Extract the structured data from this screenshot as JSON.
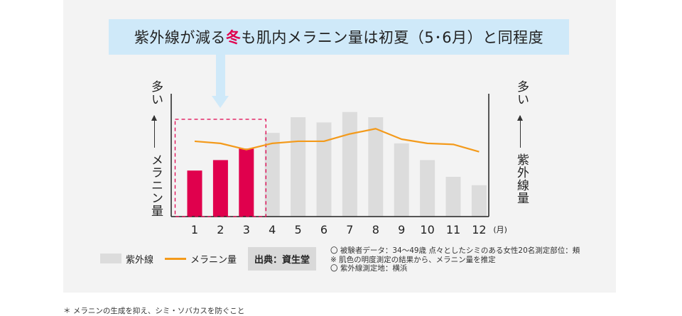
{
  "banner": {
    "text_before": "紫外線が減る",
    "highlight": "冬",
    "text_after": "も肌内メラニン量は初夏（5･6月）と同程度"
  },
  "left_axis": {
    "top": "多い",
    "label": "メラニン量"
  },
  "right_axis": {
    "top": "多い",
    "label": "紫外線量"
  },
  "legend": {
    "bar_label": "紫外線",
    "line_label": "メラニン量",
    "source": "出典：資生堂"
  },
  "notes": [
    "〇 被験者データ：34〜49歳 点々としたシミのある女性20名測定部位：頬",
    "※ 肌色の明度測定の結果から、メラニン量を推定",
    "〇 紫外線測定地：横浜"
  ],
  "footnote": "＊ メラニンの生成を抑え、シミ・ソバカスを防ぐこと",
  "colors": {
    "highlight_bar": "#e0004d",
    "bar": "#dcdcdc",
    "line": "#f39a1b",
    "banner_bg": "#cfe9f9",
    "highlight_box": "#e0004d"
  },
  "chart_data": {
    "type": "bar",
    "categories": [
      "1",
      "2",
      "3",
      "4",
      "5",
      "6",
      "7",
      "8",
      "9",
      "10",
      "11",
      "12"
    ],
    "unit_label": "(月)",
    "series": [
      {
        "name": "紫外線",
        "type": "bar",
        "axis": "right",
        "values": [
          44,
          54,
          65,
          80,
          95,
          90,
          100,
          95,
          70,
          54,
          38,
          30
        ]
      },
      {
        "name": "メラニン量",
        "type": "line",
        "axis": "left",
        "values": [
          72,
          70,
          64,
          70,
          72,
          72,
          79,
          84,
          74,
          70,
          69,
          62
        ]
      }
    ],
    "highlighted_categories": [
      "1",
      "2",
      "3"
    ],
    "ylim": [
      0,
      112
    ],
    "axis_ticks_shown": false
  }
}
